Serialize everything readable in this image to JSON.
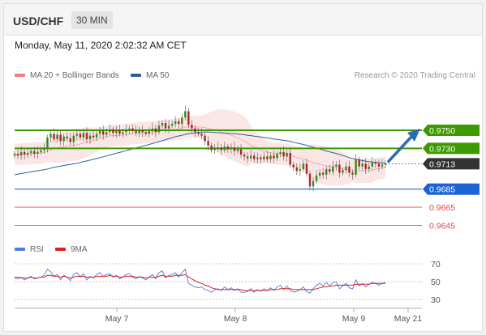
{
  "header": {
    "pair": "USD/CHF",
    "timeframe": "30 MIN"
  },
  "datetime": "Monday, May 11, 2020 2:02:32 AM CET",
  "legend": {
    "bollinger": "MA 20 + Bollinger Bands",
    "ma50": "MA 50",
    "credit": "Research © 2020 Trading Central"
  },
  "rsi_legend": {
    "rsi": "RSI",
    "ma9": "9MA"
  },
  "colors": {
    "bollinger": "#f08080",
    "ma50": "#2f5f9f",
    "green": "#3c9a00",
    "blue_level": "#1e63d6",
    "red_level": "#e54848",
    "current": "#333333",
    "arrow": "#2a6bb6",
    "rsi": "#4f7be0",
    "ma9": "#dd1f1f"
  },
  "chart_data": [
    {
      "type": "candlestick",
      "title": "",
      "ylim": [
        0.9632,
        0.98
      ],
      "x_ticks": [
        "May 7",
        "May 8",
        "May 9",
        "May 21"
      ],
      "levels": [
        {
          "value": 0.975,
          "label": "0.9750",
          "kind": "resistance"
        },
        {
          "value": 0.973,
          "label": "0.9730",
          "kind": "resistance"
        },
        {
          "value": 0.9713,
          "label": "0.9713",
          "kind": "current"
        },
        {
          "value": 0.9685,
          "label": "0.9685",
          "kind": "pivot"
        },
        {
          "value": 0.9665,
          "label": "0.9665",
          "kind": "support"
        },
        {
          "value": 0.9645,
          "label": "0.9645",
          "kind": "support"
        }
      ],
      "forecast_target": 0.975,
      "close": [
        0.9724,
        0.9722,
        0.9726,
        0.9723,
        0.9725,
        0.9727,
        0.9724,
        0.9726,
        0.9728,
        0.973,
        0.9742,
        0.9746,
        0.974,
        0.9745,
        0.9738,
        0.9743,
        0.9741,
        0.9737,
        0.9744,
        0.9746,
        0.9742,
        0.9747,
        0.974,
        0.9744,
        0.9742,
        0.9746,
        0.9749,
        0.9745,
        0.9748,
        0.9751,
        0.9747,
        0.975,
        0.9746,
        0.9748,
        0.9751,
        0.9752,
        0.9749,
        0.9747,
        0.975,
        0.9748,
        0.9746,
        0.9749,
        0.9752,
        0.9748,
        0.9755,
        0.9758,
        0.9752,
        0.9755,
        0.9757,
        0.976,
        0.9757,
        0.9764,
        0.9771,
        0.9756,
        0.9752,
        0.9748,
        0.9746,
        0.9744,
        0.9738,
        0.9733,
        0.9728,
        0.973,
        0.9731,
        0.9728,
        0.9732,
        0.9729,
        0.9731,
        0.9727,
        0.9729,
        0.9723,
        0.9721,
        0.9719,
        0.9722,
        0.9718,
        0.972,
        0.9718,
        0.9721,
        0.9718,
        0.9722,
        0.9719,
        0.9724,
        0.9726,
        0.9721,
        0.9725,
        0.9712,
        0.9709,
        0.9705,
        0.9707,
        0.9713,
        0.9702,
        0.9688,
        0.9694,
        0.97,
        0.9703,
        0.9701,
        0.9707,
        0.9704,
        0.971,
        0.9712,
        0.9703,
        0.9706,
        0.971,
        0.9703,
        0.9701,
        0.9718,
        0.971,
        0.9713,
        0.9707,
        0.971,
        0.9715,
        0.9713,
        0.971,
        0.9712,
        0.9713
      ]
    },
    {
      "type": "line",
      "title": "",
      "ylim": [
        20,
        80
      ],
      "y_ticks": [
        70,
        50,
        30
      ],
      "series": [
        {
          "name": "RSI"
        },
        {
          "name": "9MA"
        }
      ],
      "rsi": [
        54,
        53,
        55,
        52,
        54,
        56,
        53,
        54,
        55,
        57,
        64,
        61,
        56,
        58,
        52,
        57,
        55,
        51,
        58,
        60,
        55,
        59,
        52,
        56,
        54,
        58,
        60,
        56,
        58,
        59,
        55,
        57,
        53,
        55,
        58,
        59,
        55,
        53,
        56,
        54,
        52,
        55,
        58,
        53,
        60,
        62,
        54,
        57,
        58,
        60,
        55,
        60,
        64,
        48,
        46,
        44,
        43,
        44,
        41,
        40,
        38,
        41,
        42,
        40,
        44,
        41,
        43,
        40,
        42,
        38,
        38,
        39,
        42,
        38,
        41,
        39,
        42,
        40,
        43,
        40,
        44,
        46,
        41,
        45,
        40,
        38,
        39,
        41,
        44,
        39,
        37,
        42,
        46,
        48,
        45,
        49,
        45,
        49,
        50,
        42,
        45,
        48,
        43,
        42,
        52,
        45,
        48,
        44,
        47,
        49,
        48,
        46,
        48,
        49
      ],
      "ma9": [
        55,
        55,
        54,
        54,
        54,
        55,
        54,
        54,
        55,
        55,
        57,
        57,
        56,
        56,
        55,
        56,
        55,
        54,
        55,
        56,
        56,
        56,
        55,
        55,
        55,
        56,
        56,
        56,
        56,
        57,
        56,
        56,
        55,
        55,
        56,
        56,
        56,
        55,
        55,
        55,
        54,
        55,
        55,
        55,
        56,
        57,
        56,
        56,
        56,
        57,
        57,
        57,
        58,
        55,
        53,
        51,
        49,
        48,
        46,
        45,
        43,
        42,
        41,
        41,
        41,
        41,
        41,
        41,
        41,
        41,
        40,
        40,
        40,
        40,
        40,
        40,
        40,
        40,
        41,
        41,
        41,
        42,
        42,
        42,
        42,
        41,
        41,
        41,
        41,
        41,
        41,
        41,
        42,
        43,
        44,
        44,
        45,
        45,
        46,
        46,
        46,
        46,
        46,
        46,
        47,
        47,
        47,
        47,
        47,
        48,
        48,
        48,
        48,
        48
      ]
    }
  ]
}
